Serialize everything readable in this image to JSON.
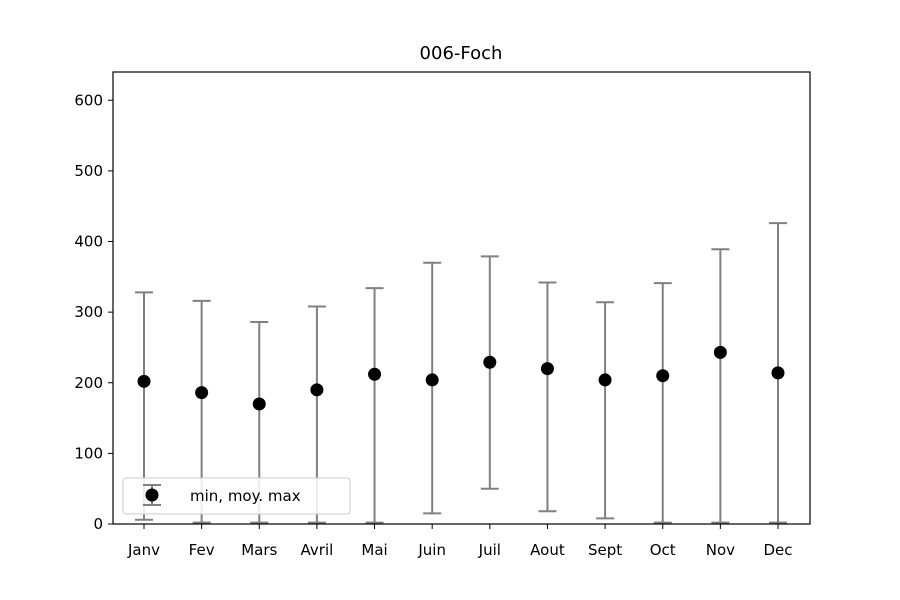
{
  "chart_data": {
    "type": "scatter",
    "title": "006-Foch",
    "xlabel": "",
    "ylabel": "",
    "categories": [
      "Janv",
      "Fev",
      "Mars",
      "Avril",
      "Mai",
      "Juin",
      "Juil",
      "Aout",
      "Sept",
      "Oct",
      "Nov",
      "Dec"
    ],
    "mean": [
      202,
      186,
      170,
      190,
      212,
      204,
      229,
      220,
      204,
      210,
      243,
      214
    ],
    "min": [
      6,
      2,
      2,
      2,
      2,
      15,
      50,
      18,
      8,
      2,
      2,
      2
    ],
    "max": [
      328,
      316,
      286,
      308,
      334,
      370,
      379,
      342,
      314,
      341,
      389,
      426
    ],
    "ylim": [
      0,
      640
    ],
    "yticks": [
      0,
      100,
      200,
      300,
      400,
      500,
      600
    ],
    "grid": false,
    "legend": {
      "placement": "lower-left",
      "label": "min, moy. max"
    },
    "colors": {
      "marker": "#000000",
      "errorbar": "#808080"
    }
  }
}
